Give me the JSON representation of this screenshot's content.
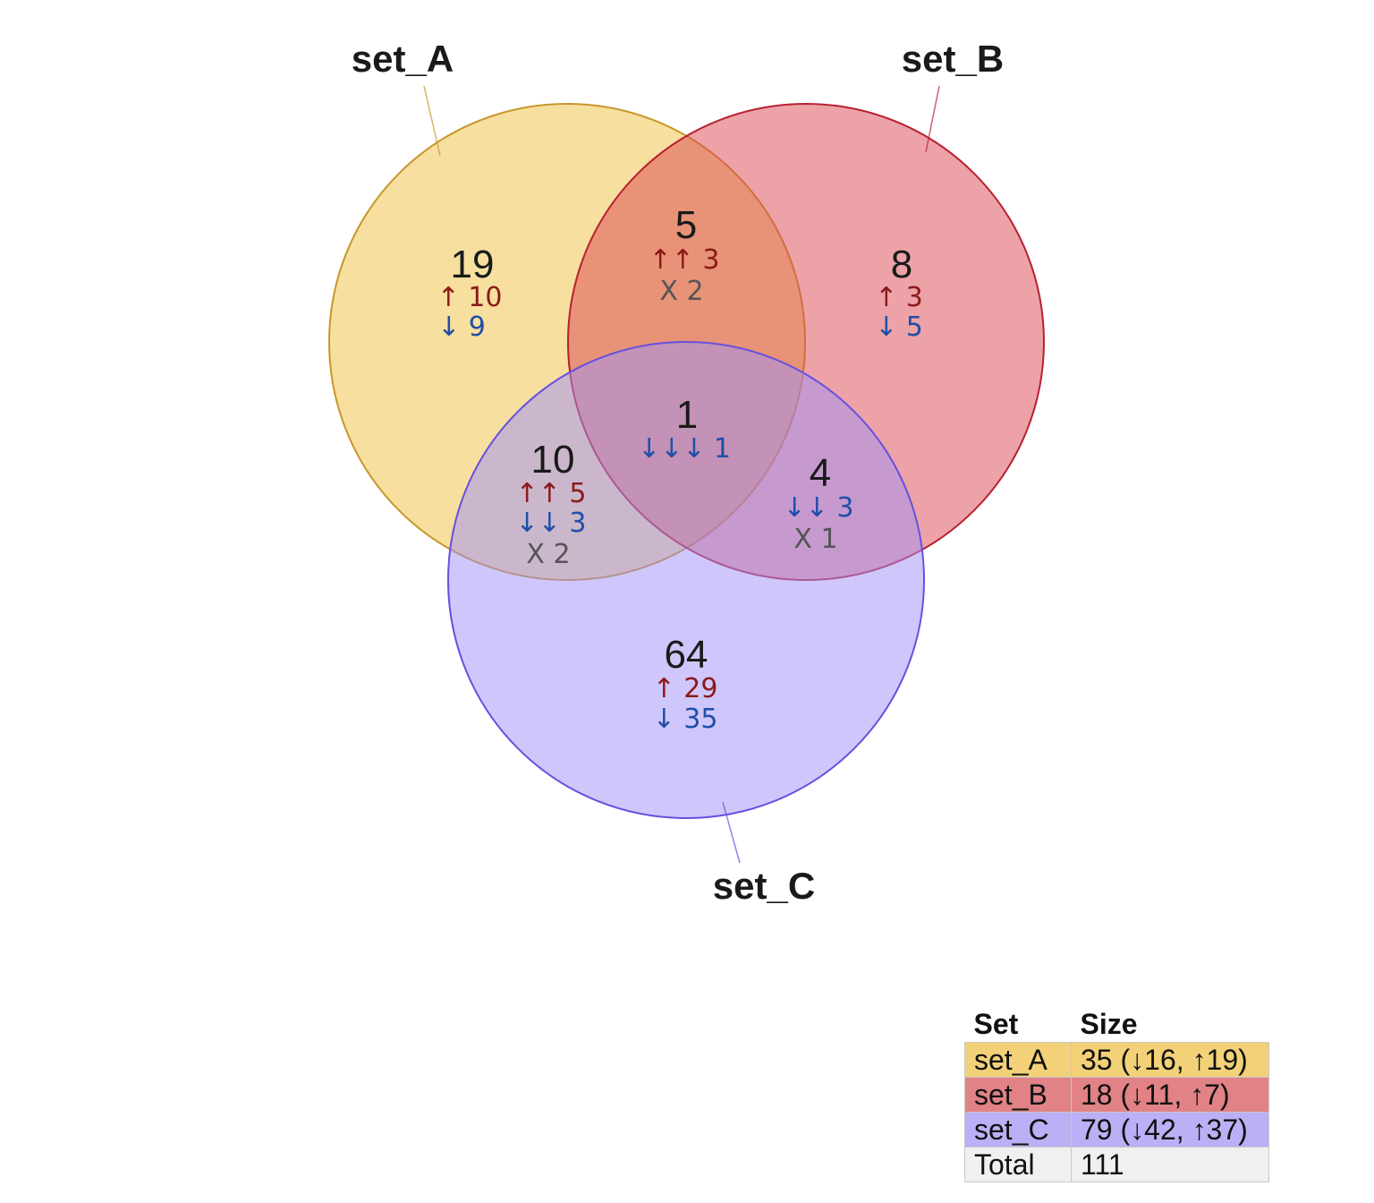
{
  "sets": [
    {
      "name": "set_A",
      "fill": "#f0c040",
      "stroke": "#c8962a"
    },
    {
      "name": "set_B",
      "fill": "#d94650",
      "stroke": "#b82030"
    },
    {
      "name": "set_C",
      "fill": "#9f8ff8",
      "stroke": "#6650e0"
    }
  ],
  "regions": [
    {
      "id": "a",
      "count": "19",
      "lines": [
        {
          "t": "↑ 10",
          "k": "up"
        },
        {
          "t": "↓ 9",
          "k": "down"
        }
      ]
    },
    {
      "id": "ab",
      "count": "5",
      "lines": [
        {
          "t": "↑↑ 3",
          "k": "up"
        },
        {
          "t": "X 2",
          "k": "mixed"
        }
      ]
    },
    {
      "id": "b",
      "count": "8",
      "lines": [
        {
          "t": "↑ 3",
          "k": "up"
        },
        {
          "t": "↓ 5",
          "k": "down"
        }
      ]
    },
    {
      "id": "abc",
      "count": "1",
      "lines": [
        {
          "t": "↓↓↓ 1",
          "k": "down"
        }
      ]
    },
    {
      "id": "ac",
      "count": "10",
      "lines": [
        {
          "t": "↑↑ 5",
          "k": "up"
        },
        {
          "t": "↓↓ 3",
          "k": "down"
        },
        {
          "t": "X 2",
          "k": "mixed"
        }
      ]
    },
    {
      "id": "bc",
      "count": "4",
      "lines": [
        {
          "t": "↓↓ 3",
          "k": "down"
        },
        {
          "t": "X 1",
          "k": "mixed"
        }
      ]
    },
    {
      "id": "c",
      "count": "64",
      "lines": [
        {
          "t": "↑ 29",
          "k": "up"
        },
        {
          "t": "↓ 35",
          "k": "down"
        }
      ]
    }
  ],
  "table": {
    "headers": [
      "Set",
      "Size"
    ],
    "rows": [
      {
        "set": "set_A",
        "size": "35 (↓16, ↑19)",
        "bg": "#f2d178"
      },
      {
        "set": "set_B",
        "size": "18 (↓11, ↑7)",
        "bg": "#e08286"
      },
      {
        "set": "set_C",
        "size": "79 (↓42, ↑37)",
        "bg": "#bbb0f5"
      },
      {
        "set": "Total",
        "size": "111",
        "bg": "#f0f0f0"
      }
    ]
  }
}
